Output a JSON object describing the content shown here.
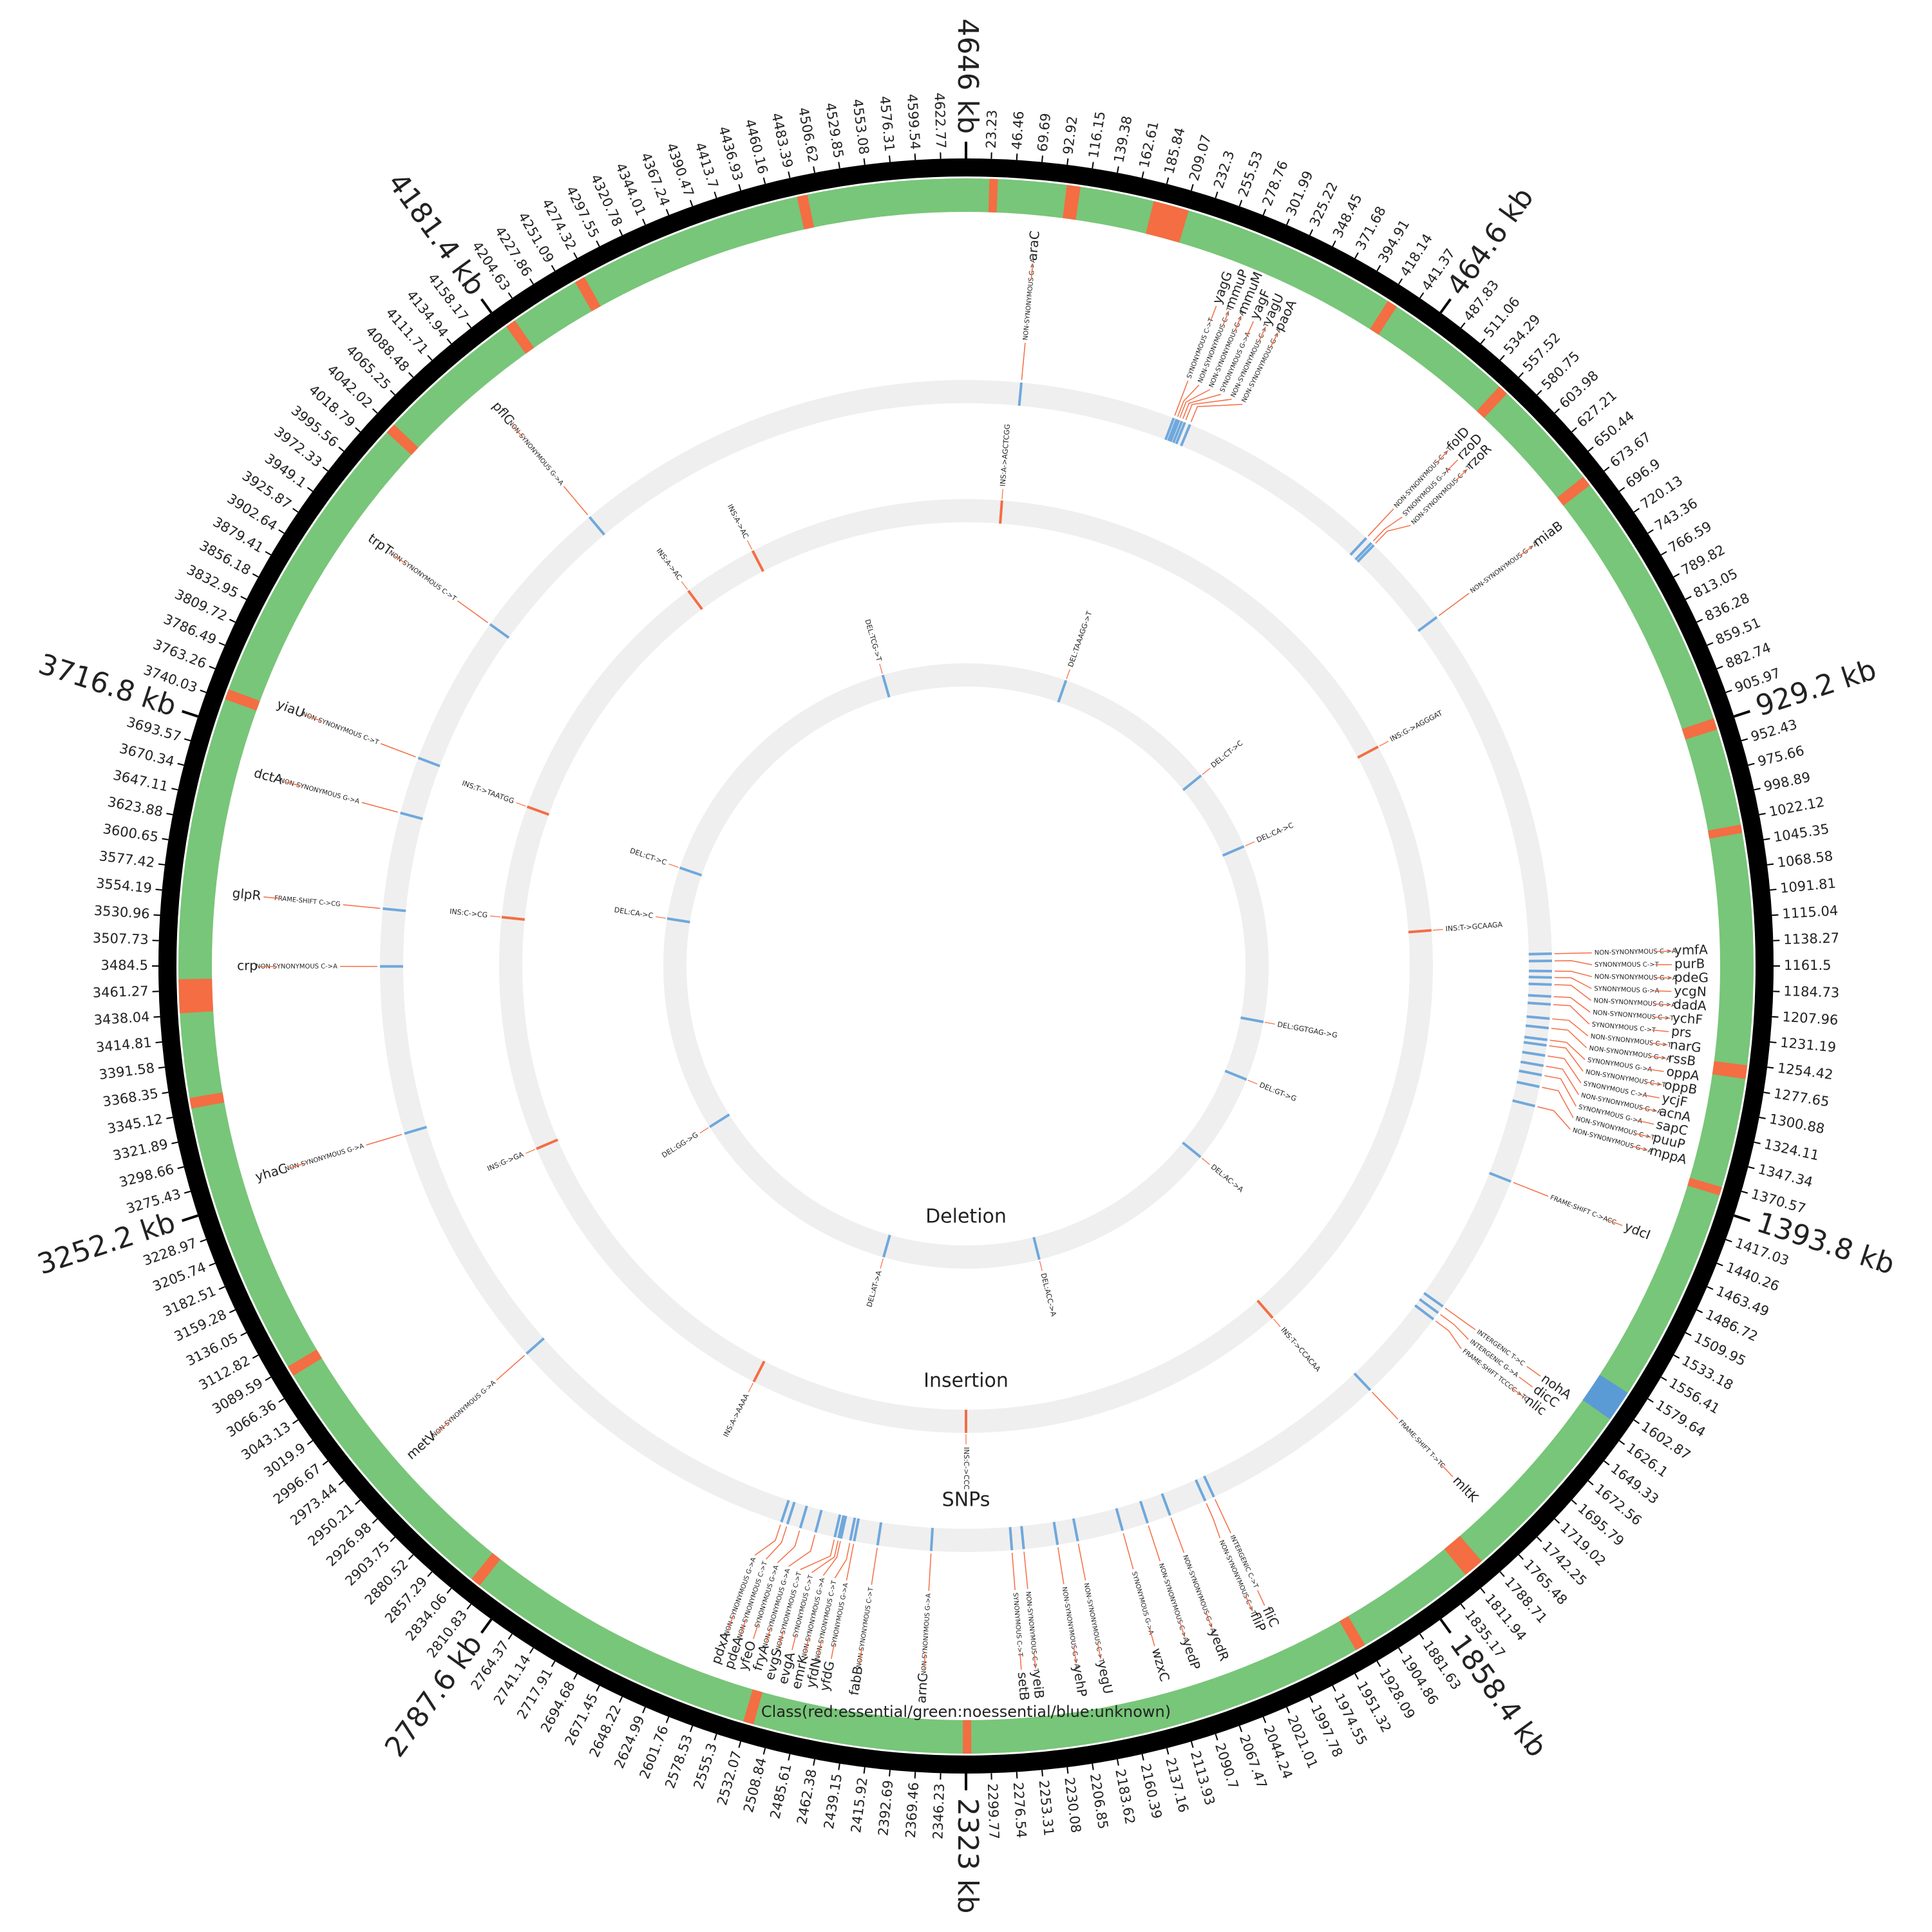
{
  "chart_data": {
    "type": "circos",
    "xlim": [
      0,
      4646
    ],
    "xticks": [
      23.23,
      46.46,
      69.69,
      92.92,
      116.15,
      139.38,
      162.61,
      185.84,
      209.07,
      232.3,
      255.53,
      278.76,
      301.99,
      325.22,
      348.45,
      371.68,
      394.91,
      418.14,
      441.37,
      {
        "value": 464.6,
        "label": "464.6 kb"
      },
      487.83,
      511.06,
      534.29,
      557.52,
      580.75,
      603.98,
      627.21,
      650.44,
      673.67,
      696.9,
      720.13,
      743.36,
      766.59,
      789.82,
      813.05,
      836.28,
      859.51,
      882.74,
      905.97,
      {
        "value": 929.2,
        "label": "929.2 kb"
      },
      952.43,
      975.66,
      998.89,
      1022.12,
      1045.35,
      1068.58,
      1091.81,
      1115.04,
      1138.27,
      1161.5,
      1184.73,
      1207.96,
      1231.19,
      1254.42,
      1277.65,
      1300.88,
      1324.11,
      1347.34,
      1370.57,
      {
        "value": 1393.8,
        "label": "1393.8 kb"
      },
      1417.03,
      1440.26,
      1463.49,
      1486.72,
      1509.95,
      1533.18,
      1556.41,
      1579.64,
      1602.87,
      1626.1,
      1649.33,
      1672.56,
      1695.79,
      1719.02,
      1742.25,
      1765.48,
      1788.71,
      1811.94,
      1835.17,
      {
        "value": 1858.4,
        "label": "1858.4 kb"
      },
      1881.63,
      1904.86,
      1928.09,
      1951.32,
      1974.55,
      1997.78,
      2021.01,
      2044.24,
      2067.47,
      2090.7,
      2113.93,
      2137.16,
      2160.39,
      2183.62,
      2206.85,
      2230.08,
      2253.31,
      2276.54,
      2299.77,
      {
        "value": 2323,
        "label": "2323 kb"
      },
      2346.23,
      2369.46,
      2392.69,
      2415.92,
      2439.15,
      2462.38,
      2485.61,
      2508.84,
      2532.07,
      2555.3,
      2578.53,
      2601.76,
      2624.99,
      2648.22,
      2671.45,
      2694.68,
      2717.91,
      2741.14,
      2764.37,
      {
        "value": 2787.6,
        "label": "2787.6 kb"
      },
      2810.83,
      2834.06,
      2857.29,
      2880.52,
      2903.75,
      2926.98,
      2950.21,
      2973.44,
      2996.67,
      3019.9,
      3043.13,
      3066.36,
      3089.59,
      3112.82,
      3136.05,
      3159.28,
      3182.51,
      3205.74,
      3228.97,
      {
        "value": 3252.2,
        "label": "3252.2 kb"
      },
      3275.43,
      3298.66,
      3321.89,
      3345.12,
      3368.35,
      3391.58,
      3414.81,
      3438.04,
      3461.27,
      3484.5,
      3507.73,
      3530.96,
      3554.19,
      3577.42,
      3600.65,
      3623.88,
      3647.11,
      3670.34,
      3693.57,
      {
        "value": 3716.8,
        "label": "3716.8 kb"
      },
      3740.03,
      3763.26,
      3786.49,
      3809.72,
      3832.95,
      3856.18,
      3879.41,
      3902.64,
      3925.87,
      3949.1,
      3972.33,
      3995.56,
      4018.79,
      4042.02,
      4065.25,
      4088.48,
      4111.71,
      4134.94,
      4158.17,
      {
        "value": 4181.4,
        "label": "4181.4 kb"
      },
      4204.63,
      4227.86,
      4251.09,
      4274.32,
      4297.55,
      4320.78,
      4344.01,
      4367.24,
      4390.47,
      4413.7,
      4436.93,
      4460.16,
      4483.39,
      4506.62,
      4529.85,
      4553.08,
      4576.31,
      4599.54,
      4622.77,
      {
        "value": 4646,
        "label": "4646 kb"
      }
    ],
    "class_track": {
      "label": "Class(red:essential/green:noessential/blue:unknown)",
      "color": "#78c679",
      "essential_color": "#f46d43",
      "unknown_color": "#5b9bd5",
      "essential": [
        [
          22,
          30
        ],
        [
          95,
          108
        ],
        [
          178,
          212
        ],
        [
          418,
          428
        ],
        [
          550,
          560
        ],
        [
          666,
          676
        ],
        [
          925,
          936
        ],
        [
          1028,
          1036
        ],
        [
          1255,
          1268
        ],
        [
          1372,
          1380
        ],
        [
          1795,
          1815
        ],
        [
          1930,
          1940
        ],
        [
          2318,
          2326
        ],
        [
          2525,
          2535
        ],
        [
          2815,
          2825
        ],
        [
          3080,
          3090
        ],
        [
          3350,
          3360
        ],
        [
          3440,
          3472
        ],
        [
          3740,
          3750
        ],
        [
          4035,
          4045
        ],
        [
          4185,
          4195
        ],
        [
          4262,
          4272
        ],
        [
          4486,
          4496
        ]
      ],
      "unknown": [
        [
          1585,
          1615
        ]
      ]
    },
    "tracks": [
      {
        "name": "SNPs",
        "color": "#6fa8dc",
        "link_color": "#f46d43",
        "events": [
          {
            "position": 70,
            "gene": "araC",
            "annotation": "NON-SYNONYMOUS G->A"
          },
          {
            "position": 268,
            "gene": "yagG",
            "annotation": "SYNONYMOUS C->T"
          },
          {
            "position": 272,
            "gene": "mmuP",
            "annotation": "NON-SYNONYMOUS C->T"
          },
          {
            "position": 275,
            "gene": "mmuM",
            "annotation": "NON-SYNONYMOUS G->A"
          },
          {
            "position": 279,
            "gene": "yagF",
            "annotation": "SYNONYMOUS G->A"
          },
          {
            "position": 283,
            "gene": "yagU",
            "annotation": "NON-SYNONYMOUS C->T"
          },
          {
            "position": 290,
            "gene": "paoA",
            "annotation": "NON-SYNONYMOUS G->A"
          },
          {
            "position": 556,
            "gene": "folD",
            "annotation": "NON-SYNONYMOUS C->T"
          },
          {
            "position": 565,
            "gene": "rzoD",
            "annotation": "SYNONYMOUS G->A"
          },
          {
            "position": 569,
            "gene": "rzoR",
            "annotation": "NON-SYNONYMOUS C->T"
          },
          {
            "position": 690,
            "gene": "miaB",
            "annotation": "NON-SYNONYMOUS G->A"
          },
          {
            "position": 1146,
            "gene": "ymfA",
            "annotation": "NON-SYNONYMOUS C->A"
          },
          {
            "position": 1155,
            "gene": "purB",
            "annotation": "SYNONYMOUS C->T"
          },
          {
            "position": 1168,
            "gene": "pdeG",
            "annotation": "NON-SYNONYMOUS G->A"
          },
          {
            "position": 1176,
            "gene": "ycgN",
            "annotation": "SYNONYMOUS G->A"
          },
          {
            "position": 1185,
            "gene": "dadA",
            "annotation": "NON-SYNONYMOUS G->A"
          },
          {
            "position": 1200,
            "gene": "ychF",
            "annotation": "NON-SYNONYMOUS C->T"
          },
          {
            "position": 1210,
            "gene": "prs",
            "annotation": "SYNONYMOUS C->T"
          },
          {
            "position": 1228,
            "gene": "narG",
            "annotation": "NON-SYNONYMOUS C->T"
          },
          {
            "position": 1240,
            "gene": "rssB",
            "annotation": "NON-SYNONYMOUS G->A"
          },
          {
            "position": 1255,
            "gene": "oppA",
            "annotation": "SYNONYMOUS G->A"
          },
          {
            "position": 1262,
            "gene": "oppB",
            "annotation": "NON-SYNONYMOUS C->T"
          },
          {
            "position": 1275,
            "gene": "ycjF",
            "annotation": "SYNONYMOUS C->A"
          },
          {
            "position": 1288,
            "gene": "acnA",
            "annotation": "NON-SYNONYMOUS G->A"
          },
          {
            "position": 1300,
            "gene": "sapC",
            "annotation": "SYNONYMOUS G->A"
          },
          {
            "position": 1315,
            "gene": "puuP",
            "annotation": "NON-SYNONYMOUS C->T"
          },
          {
            "position": 1340,
            "gene": "mppA",
            "annotation": "NON-SYNONYMOUS G->A"
          },
          {
            "position": 1440,
            "gene": "ydcI",
            "annotation": "FRAME-SHIFT C->ACC"
          },
          {
            "position": 1620,
            "gene": "nohA",
            "annotation": "INTERGENIC T->C"
          },
          {
            "position": 1630,
            "gene": "dicC",
            "annotation": "INTERGENIC G->A"
          },
          {
            "position": 1640,
            "gene": "nlic",
            "annotation": "FRAME-SHIFT TCCCC->TC"
          },
          {
            "position": 1760,
            "gene": "mltK",
            "annotation": "FRAME-SHIFT T->TC"
          },
          {
            "position": 2000,
            "gene": "fliC",
            "annotation": "INTERGENIC C->T"
          },
          {
            "position": 2012,
            "gene": "fliP",
            "annotation": "NON-SYNONYMOUS C->T"
          },
          {
            "position": 2060,
            "gene": "yedR",
            "annotation": "NON-SYNONYMOUS G->A"
          },
          {
            "position": 2090,
            "gene": "yedP",
            "annotation": "NON-SYNONYMOUS C->A"
          },
          {
            "position": 2123,
            "gene": "wzxC",
            "annotation": "SYNONYMOUS G->A"
          },
          {
            "position": 2181,
            "gene": "yegU",
            "annotation": "NON-SYNONYMOUS C->T"
          },
          {
            "position": 2207,
            "gene": "yehP",
            "annotation": "NON-SYNONYMOUS G->A"
          },
          {
            "position": 2250,
            "gene": "yeiB",
            "annotation": "NON-SYNONYMOUS C->T"
          },
          {
            "position": 2265,
            "gene": "setB",
            "annotation": "SYNONYMOUS C->T"
          },
          {
            "position": 2367,
            "gene": "arnC",
            "annotation": "NON-SYNONYMOUS G->A"
          },
          {
            "position": 2435,
            "gene": "fabB",
            "annotation": "NON-SYNONYMOUS C->T"
          },
          {
            "position": 2465,
            "gene": "yfdG",
            "annotation": "SYNONYMOUS G->A"
          },
          {
            "position": 2470,
            "gene": "yfdN",
            "annotation": "NON-SYNONYMOUS C->T"
          },
          {
            "position": 2482,
            "gene": "emrK",
            "annotation": "NON-SYNONYMOUS G->A"
          },
          {
            "position": 2485,
            "gene": "evgA",
            "annotation": "SYNONYMOUS C->T"
          },
          {
            "position": 2490,
            "gene": "evgS",
            "annotation": "NON-SYNONYMOUS C->T"
          },
          {
            "position": 2515,
            "gene": "fryA",
            "annotation": "NON-SYNONYMOUS G->A"
          },
          {
            "position": 2535,
            "gene": "yfeO",
            "annotation": "SYNONYMOUS G->A"
          },
          {
            "position": 2552,
            "gene": "pdeA",
            "annotation": "NON-SYNONYMOUS C->T"
          },
          {
            "position": 2560,
            "gene": "pdxA",
            "annotation": "NON-SYNONYMOUS G->A"
          },
          {
            "position": 2950,
            "gene": "metV",
            "annotation": "NON-SYNONYMOUS G->A"
          },
          {
            "position": 3270,
            "gene": "yhaC",
            "annotation": "NON-SYNONYMOUS G->A"
          },
          {
            "position": 3484,
            "gene": "crp",
            "annotation": "NON-SYNONYMOUS C->A"
          },
          {
            "position": 3557,
            "gene": "glpR",
            "annotation": "FRAME-SHIFT C->CG"
          },
          {
            "position": 3680,
            "gene": "dctA",
            "annotation": "NON-SYNONYMOUS G->A"
          },
          {
            "position": 3753,
            "gene": "yiaU",
            "annotation": "NON-SYNONYMOUS C->T"
          },
          {
            "position": 3945,
            "gene": "trpT",
            "annotation": "NON-SYNONYMOUS C->T"
          },
          {
            "position": 4130,
            "gene": "pflC",
            "annotation": "NON-SYNONYMOUS G->A"
          }
        ]
      },
      {
        "name": "Insertion",
        "color": "#f46d43",
        "events": [
          {
            "position": 57,
            "annotation": "INS:A->AGCTCGG"
          },
          {
            "position": 800,
            "annotation": "INS:G->AGGGAT"
          },
          {
            "position": 1105,
            "annotation": "INS:T->GCAAGA"
          },
          {
            "position": 1793,
            "annotation": "INS:T->CCACAA"
          },
          {
            "position": 2323,
            "annotation": "INS:C->CCC"
          },
          {
            "position": 2672,
            "annotation": "INS:A->AAAA"
          },
          {
            "position": 3187,
            "annotation": "INS:G->GA"
          },
          {
            "position": 3562,
            "annotation": "INS:C->CG"
          },
          {
            "position": 3742,
            "annotation": "INS:T->TAATGG"
          },
          {
            "position": 4175,
            "annotation": "INS:A->AC"
          },
          {
            "position": 4295,
            "annotation": "INS:A->AC"
          }
        ]
      },
      {
        "name": "Deletion",
        "color": "#6fa8dc",
        "events": [
          {
            "position": 249,
            "annotation": "DEL:TAAAGG->T"
          },
          {
            "position": 658,
            "annotation": "DEL:CT->C"
          },
          {
            "position": 861,
            "annotation": "DEL:CA->C"
          },
          {
            "position": 1299,
            "annotation": "DEL:GGTGAG->G"
          },
          {
            "position": 1446,
            "annotation": "DEL:GT->G"
          },
          {
            "position": 1667,
            "annotation": "DEL:AC->A"
          },
          {
            "position": 2142,
            "annotation": "DEL:ACC->A"
          },
          {
            "position": 2527,
            "annotation": "DEL:AT->A"
          },
          {
            "position": 3070,
            "annotation": "DEL:GG->G"
          },
          {
            "position": 3601,
            "annotation": "DEL:CA->C"
          },
          {
            "position": 3729,
            "annotation": "DEL:CT->C"
          },
          {
            "position": 4440,
            "annotation": "DEL:TCG->T"
          }
        ]
      }
    ]
  }
}
